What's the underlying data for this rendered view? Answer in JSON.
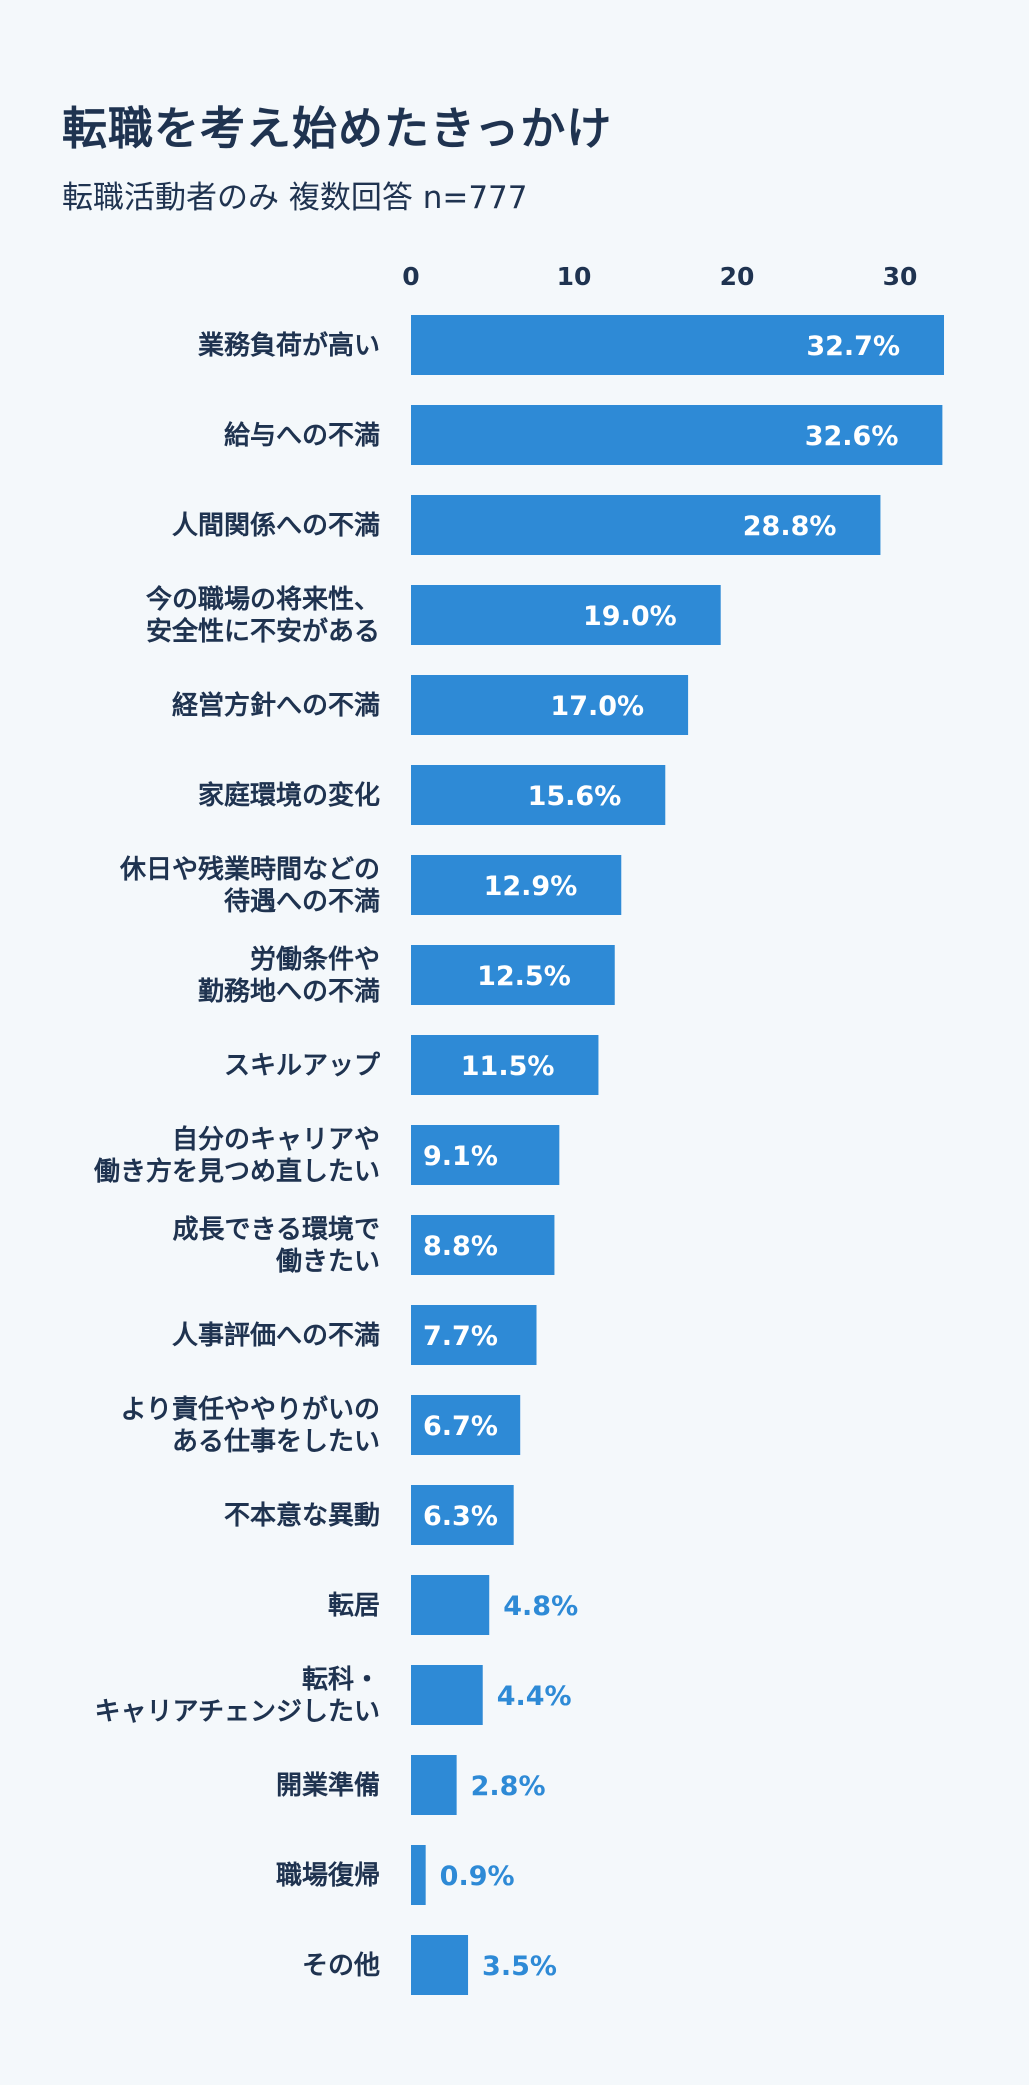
{
  "chart_data": {
    "type": "bar",
    "orientation": "horizontal",
    "title": "転職を考え始めたきっかけ",
    "subtitle": "転職活動者のみ 複数回答 n=777",
    "xlabel": "",
    "ylabel": "",
    "xlim": [
      0,
      33
    ],
    "xticks": [
      0,
      10,
      20,
      30
    ],
    "grid": false,
    "value_suffix": "%",
    "categories": [
      [
        "業務負荷が高い"
      ],
      [
        "給与への不満"
      ],
      [
        "人間関係への不満"
      ],
      [
        "今の職場の将来性、",
        "安全性に不安がある"
      ],
      [
        "経営方針への不満"
      ],
      [
        "家庭環境の変化"
      ],
      [
        "休日や残業時間などの",
        "待遇への不満"
      ],
      [
        "労働条件や",
        "勤務地への不満"
      ],
      [
        "スキルアップ"
      ],
      [
        "自分のキャリアや",
        "働き方を見つめ直したい"
      ],
      [
        "成長できる環境で",
        "働きたい"
      ],
      [
        "人事評価への不満"
      ],
      [
        "より責任ややりがいの",
        "ある仕事をしたい"
      ],
      [
        "不本意な異動"
      ],
      [
        "転居"
      ],
      [
        "転科・",
        "キャリアチェンジしたい"
      ],
      [
        "開業準備"
      ],
      [
        "職場復帰"
      ],
      [
        "その他"
      ]
    ],
    "values": [
      32.7,
      32.6,
      28.8,
      19.0,
      17.0,
      15.6,
      12.9,
      12.5,
      11.5,
      9.1,
      8.8,
      7.7,
      6.7,
      6.3,
      4.8,
      4.4,
      2.8,
      0.9,
      3.5
    ],
    "bar_color": "#2e8ad6",
    "label_inside_color": "#ffffff",
    "label_outside_color": "#2e8ad6"
  }
}
